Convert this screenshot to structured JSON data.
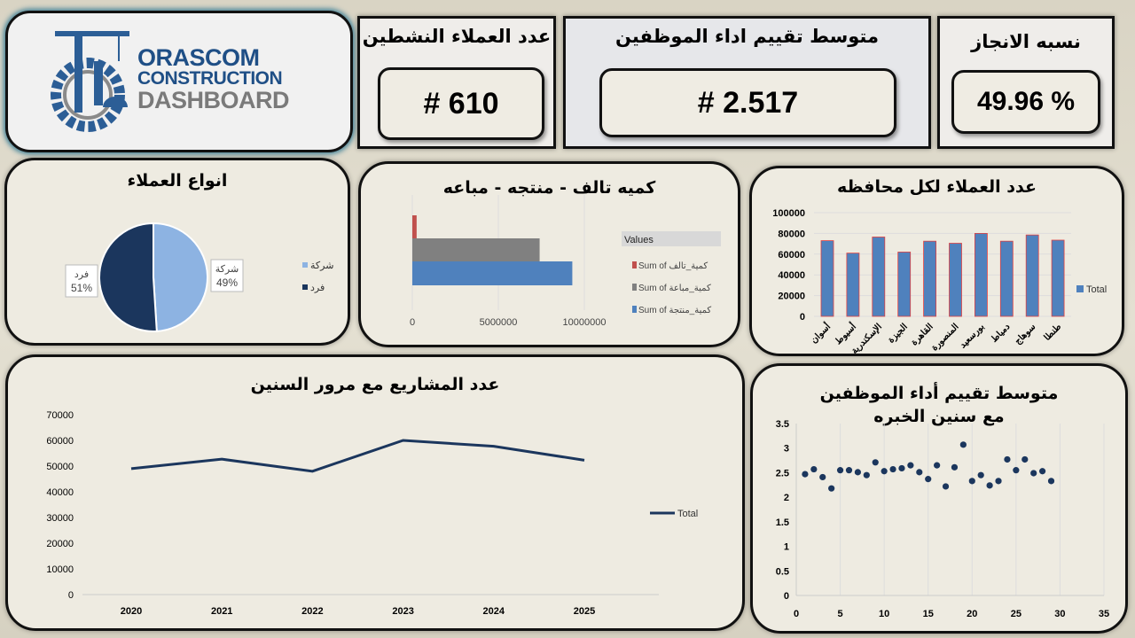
{
  "logo": {
    "line1": "ORASCOM",
    "line2": "CONSTRUCTION",
    "line3": "DASHBOARD"
  },
  "kpis": [
    {
      "title": "عدد العملاء النشطين",
      "value": "# 610"
    },
    {
      "title": "متوسط تقييم اداء الموظفين",
      "value": "# 2.517"
    },
    {
      "title": "نسبه الانجاز",
      "value": "49.96 %"
    }
  ],
  "colors": {
    "dark_blue": "#1b365d",
    "light_blue": "#8db3e2",
    "bar_blue": "#4f81bd",
    "gray": "#808080",
    "red": "#c0504d",
    "panel": "#eeebe1"
  },
  "chart_data": [
    {
      "type": "pie",
      "title": "انواع العملاء",
      "slices": [
        {
          "label": "شركة",
          "value": 49,
          "pct": "49%"
        },
        {
          "label": "فرد",
          "value": 51,
          "pct": "51%"
        }
      ],
      "legend": "right"
    },
    {
      "type": "bar",
      "orientation": "horizontal",
      "title": "كميه تالف - منتجه - مباعه",
      "legend_title": "Values",
      "legend": "right",
      "series": [
        {
          "name": "Sum of كمية_تالف",
          "value": 250000
        },
        {
          "name": "Sum of كمية_مباعة",
          "value": 7400000
        },
        {
          "name": "Sum of كمية_منتجة",
          "value": 9300000
        }
      ],
      "xlim": [
        0,
        10000000
      ],
      "xticks": [
        "0",
        "5000000",
        "10000000"
      ]
    },
    {
      "type": "bar",
      "title": "عدد العملاء لكل محافظه",
      "categories": [
        "أسوان",
        "أسيوط",
        "الإسكندرية",
        "الجيزة",
        "القاهرة",
        "المنصورة",
        "بورسعيد",
        "دمياط",
        "سوهاج",
        "طنطا"
      ],
      "series": [
        {
          "name": "Total",
          "values": [
            73000,
            61000,
            76500,
            62000,
            72500,
            70500,
            80000,
            72500,
            78500,
            73500
          ]
        }
      ],
      "ylim": [
        0,
        100000
      ],
      "yticks": [
        "0",
        "20000",
        "40000",
        "60000",
        "80000",
        "100000"
      ],
      "legend": "right"
    },
    {
      "type": "line",
      "title": "عدد المشاريع مع مرور السنين",
      "categories": [
        "2020",
        "2021",
        "2022",
        "2023",
        "2024",
        "2025"
      ],
      "series": [
        {
          "name": "Total",
          "values": [
            49000,
            52700,
            48000,
            60000,
            57700,
            52300
          ]
        }
      ],
      "ylim": [
        0,
        70000
      ],
      "yticks": [
        "0",
        "10000",
        "20000",
        "30000",
        "40000",
        "50000",
        "60000",
        "70000"
      ],
      "legend": "right"
    },
    {
      "type": "scatter",
      "title": "متوسط تقييم أداء الموظفين مع سنين الخبره",
      "x": [
        1,
        2,
        3,
        4,
        5,
        6,
        7,
        8,
        9,
        10,
        11,
        12,
        13,
        14,
        15,
        16,
        17,
        18,
        19,
        20,
        21,
        22,
        23,
        24,
        25,
        26,
        27,
        28,
        29
      ],
      "y": [
        2.47,
        2.57,
        2.41,
        2.18,
        2.55,
        2.55,
        2.51,
        2.45,
        2.71,
        2.53,
        2.57,
        2.59,
        2.65,
        2.51,
        2.37,
        2.65,
        2.22,
        2.61,
        3.07,
        2.33,
        2.45,
        2.24,
        2.33,
        2.77,
        2.55,
        2.77,
        2.49,
        2.53,
        2.33
      ],
      "xlim": [
        0,
        35
      ],
      "ylim": [
        0,
        3.5
      ],
      "xticks": [
        "0",
        "5",
        "10",
        "15",
        "20",
        "25",
        "30",
        "35"
      ],
      "yticks": [
        "0",
        "0.5",
        "1",
        "1.5",
        "2",
        "2.5",
        "3",
        "3.5"
      ]
    }
  ]
}
